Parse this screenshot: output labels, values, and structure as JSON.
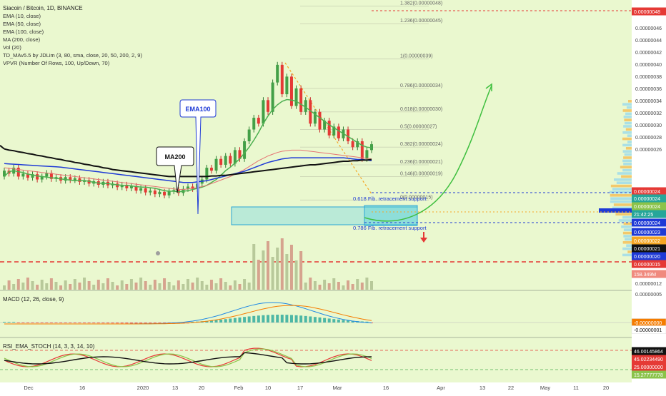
{
  "header": {
    "symbol": "Siacoin / Bitcoin, 1D, BINANCE",
    "indicators": [
      "EMA (10, close)",
      "EMA (50, close)",
      "EMA (100, close)",
      "MA (200, close)",
      "Vol (20)",
      "TD_MAv5.5 by JDLim (3, 80, sma, close, 20, 50, 200, 2, 9)",
      "VPVR (Number Of Rows, 100, Up/Down, 70)"
    ]
  },
  "annotations": {
    "ma200": "MA200",
    "ema100": "EMA100",
    "fib618_support": "0.618 Fib. retracement support",
    "fib786_support": "0.786 Fib. retracement support"
  },
  "fib_levels": [
    {
      "label": "1.382(0.00000048)",
      "price": 48
    },
    {
      "label": "1.236(0.00000045)",
      "price": 45
    },
    {
      "label": "1(0.00000039)",
      "price": 39
    },
    {
      "label": "0.786(0.00000034)",
      "price": 34
    },
    {
      "label": "0.618(0.00000030)",
      "price": 30
    },
    {
      "label": "0.5(0.00000027)",
      "price": 27
    },
    {
      "label": "0.382(0.00000024)",
      "price": 24
    },
    {
      "label": "0.236(0.00000021)",
      "price": 21
    },
    {
      "label": "0.146(0.00000019)",
      "price": 19
    },
    {
      "label": "0(0.00000015)",
      "price": 15
    }
  ],
  "price_axis": {
    "ticks": [
      "0.00000046",
      "0.00000044",
      "0.00000042",
      "0.00000040",
      "0.00000038",
      "0.00000036",
      "0.00000034",
      "0.00000032",
      "0.00000030",
      "0.00000028",
      "0.00000026",
      "0.00000012",
      "0.00000005"
    ],
    "tags": [
      {
        "text": "0.00000048",
        "color": "#e53935"
      },
      {
        "text": "0.00000024",
        "color": "#e53935"
      },
      {
        "text": "0.00000024",
        "color": "#26a69a"
      },
      {
        "text": "0.00000024",
        "color": "#8bc34a"
      },
      {
        "text": "21:42:25",
        "color": "#26a69a"
      },
      {
        "text": "0.00000024",
        "color": "#1e3ad6"
      },
      {
        "text": "0.00000023",
        "color": "#1e3ad6"
      },
      {
        "text": "0.00000022",
        "color": "#f5a623"
      },
      {
        "text": "0.00000021",
        "color": "#111111"
      },
      {
        "text": "0.00000020",
        "color": "#1e3ad6"
      },
      {
        "text": "0.00000015",
        "color": "#e53935"
      },
      {
        "text": "158.349M",
        "color": "#f08a7e"
      }
    ]
  },
  "macd": {
    "title": "MACD (12, 26, close, 9)",
    "tags": [
      {
        "text": "-0.00000000",
        "color": "#f57c00"
      },
      {
        "text": "-0.00000001",
        "color": "#ffffff"
      }
    ]
  },
  "rsi": {
    "title": "RSI_EMA_STOCH (14, 3, 3, 14, 10)",
    "tags": [
      {
        "text": "46.00145864",
        "color": "#111111"
      },
      {
        "text": "45.02234490",
        "color": "#e53935"
      },
      {
        "text": "25.00000000",
        "color": "#e53935"
      },
      {
        "text": "15.27777778",
        "color": "#8bc34a"
      }
    ]
  },
  "time_axis": {
    "labels": [
      "Dec",
      "16",
      "2020",
      "13",
      "20",
      "Feb",
      "10",
      "17",
      "Mar",
      "16",
      "Apr",
      "13",
      "22",
      "May",
      "11",
      "20"
    ]
  },
  "chart_data": {
    "type": "candlestick",
    "title": "Siacoin / Bitcoin, 1D, BINANCE",
    "y_unit": "1e-8 BTC (satoshi)",
    "ylim": [
      5,
      50
    ],
    "grid": false,
    "candles": [
      [
        19,
        20
      ],
      [
        20,
        19.5
      ],
      [
        19.5,
        20.5
      ],
      [
        20.5,
        19
      ],
      [
        19,
        19.5
      ],
      [
        19.5,
        18.8
      ],
      [
        18.8,
        19.4
      ],
      [
        19.4,
        18.5
      ],
      [
        18.5,
        19
      ],
      [
        19,
        19.6
      ],
      [
        19.6,
        18.6
      ],
      [
        18.6,
        18.9
      ],
      [
        18.9,
        18.3
      ],
      [
        18.3,
        18.9
      ],
      [
        18.9,
        18.4
      ],
      [
        18.4,
        18.7
      ],
      [
        18.7,
        18.1
      ],
      [
        18.1,
        18.4
      ],
      [
        18.4,
        17.8
      ],
      [
        17.8,
        18.2
      ],
      [
        18.2,
        17.6
      ],
      [
        17.6,
        18.1
      ],
      [
        18.1,
        17.5
      ],
      [
        17.5,
        17.8
      ],
      [
        17.8,
        17.2
      ],
      [
        17.2,
        17.6
      ],
      [
        17.6,
        17
      ],
      [
        17,
        17.4
      ],
      [
        17.4,
        16.6
      ],
      [
        16.6,
        17
      ],
      [
        17,
        16.3
      ],
      [
        16.3,
        16.6
      ],
      [
        16.6,
        16
      ],
      [
        16,
        16.4
      ],
      [
        16.4,
        15.8
      ],
      [
        15.8,
        16.5
      ],
      [
        16.5,
        16.7
      ],
      [
        16.7,
        16.2
      ],
      [
        16.2,
        16.9
      ],
      [
        16.9,
        17.3
      ],
      [
        17.3,
        16.9
      ],
      [
        16.9,
        17.8
      ],
      [
        17.8,
        18.5
      ],
      [
        18.5,
        20.5
      ],
      [
        20.5,
        20
      ],
      [
        20,
        22
      ],
      [
        22,
        21
      ],
      [
        21,
        22.5
      ],
      [
        22.5,
        21.2
      ],
      [
        21.2,
        23.5
      ],
      [
        23.5,
        22
      ],
      [
        22,
        25
      ],
      [
        25,
        27
      ],
      [
        27,
        29
      ],
      [
        29,
        28
      ],
      [
        28,
        32
      ],
      [
        32,
        30
      ],
      [
        30,
        35
      ],
      [
        35,
        38
      ],
      [
        38,
        33
      ],
      [
        33,
        36
      ],
      [
        36,
        31
      ],
      [
        31,
        34
      ],
      [
        34,
        30
      ],
      [
        30,
        32
      ],
      [
        32,
        28
      ],
      [
        28,
        30
      ],
      [
        30,
        27
      ],
      [
        27,
        28.5
      ],
      [
        28.5,
        26
      ],
      [
        26,
        27.5
      ],
      [
        27.5,
        25.5
      ],
      [
        25.5,
        27
      ],
      [
        27,
        25
      ],
      [
        25,
        24
      ],
      [
        24,
        25
      ],
      [
        25,
        22
      ],
      [
        22,
        23.5
      ],
      [
        23.5,
        24.5
      ]
    ],
    "series": [
      {
        "name": "EMA (10, close)",
        "values": [
          19,
          19.8,
          20,
          19.8,
          19.7,
          19.4,
          19.3,
          19.1,
          19,
          18.9,
          18.8,
          18.7,
          18.6,
          18.5,
          18.4,
          18.3,
          18.3,
          18.3,
          18.2,
          18,
          17.9,
          17.8,
          17.8,
          17.7,
          17.6,
          17.5,
          17.5,
          17.4,
          17.3,
          17.2,
          17.2,
          17.1,
          17.0,
          16.8,
          16.6,
          16.5,
          16.5,
          16.4,
          16.5,
          16.6,
          16.8,
          17,
          17.2,
          17.5,
          18,
          18.5,
          19.2,
          20,
          20.6,
          21.3,
          22,
          23,
          24,
          25.2,
          26.5,
          28,
          29.3,
          30.4,
          31.2,
          31.8,
          32.1,
          32,
          31.8,
          31.3,
          30.8,
          30.2,
          29.6,
          29,
          28.4,
          27.8,
          27.3,
          26.8,
          26.3,
          25.8,
          25.3,
          24.8,
          24.3,
          24,
          23.9
        ]
      },
      {
        "name": "EMA (50, close)",
        "values": [
          20.5,
          20.4,
          20.3,
          20.2,
          20.1,
          20,
          19.9,
          19.8,
          19.7,
          19.6,
          19.5,
          19.4,
          19.3,
          19.2,
          19.1,
          19,
          18.9,
          18.8,
          18.7,
          18.6,
          18.5,
          18.4,
          18.3,
          18.2,
          18.1,
          18,
          17.9,
          17.8,
          17.7,
          17.6,
          17.5,
          17.4,
          17.3,
          17.2,
          17.1,
          17,
          16.9,
          16.8,
          16.8,
          16.9,
          17,
          17.1,
          17.3,
          17.5,
          17.8,
          18.1,
          18.4,
          18.7,
          19,
          19.4,
          19.8,
          20.2,
          20.7,
          21.2,
          21.7,
          22.1,
          22.5,
          22.8,
          23.1,
          23.3,
          23.4,
          23.5,
          23.5,
          23.5,
          23.4,
          23.3,
          23.2,
          23.1,
          23,
          22.9,
          22.8,
          22.7,
          22.6,
          22.5,
          22.4,
          22.3,
          22.2,
          22.1,
          22
        ]
      },
      {
        "name": "EMA (100, close)",
        "values": [
          21.2,
          21.15,
          21.1,
          21.05,
          21,
          20.95,
          20.9,
          20.85,
          20.8,
          20.75,
          20.7,
          20.65,
          20.6,
          20.5,
          20.4,
          20.3,
          20.2,
          20.1,
          20,
          19.9,
          19.8,
          19.7,
          19.6,
          19.5,
          19.4,
          19.3,
          19.2,
          19.1,
          19,
          18.9,
          18.8,
          18.7,
          18.6,
          18.5,
          18.4,
          18.3,
          18.2,
          18.1,
          18,
          18,
          18,
          18.1,
          18.2,
          18.3,
          18.5,
          18.7,
          18.9,
          19.1,
          19.3,
          19.5,
          19.7,
          19.9,
          20.2,
          20.5,
          20.8,
          21.1,
          21.4,
          21.6,
          21.8,
          22,
          22.1,
          22.2,
          22.2,
          22.2,
          22.2,
          22.2,
          22.2,
          22.2,
          22.2,
          22.2,
          22.2,
          22.2,
          22.2,
          22.1,
          22,
          21.9,
          21.9,
          21.8,
          21.7
        ]
      },
      {
        "name": "MA (200, close)",
        "values": [
          23.7,
          23.5,
          23.4,
          23.2,
          23.1,
          22.9,
          22.8,
          22.6,
          22.5,
          22.3,
          22.2,
          22,
          21.9,
          21.7,
          21.6,
          21.4,
          21.3,
          21.1,
          21,
          20.8,
          20.7,
          20.5,
          20.4,
          20.2,
          20.1,
          20,
          19.9,
          19.8,
          19.7,
          19.6,
          19.5,
          19.4,
          19.3,
          19.2,
          19.1,
          19,
          19,
          19,
          19,
          19,
          19,
          19,
          19,
          19,
          19.1,
          19.1,
          19.2,
          19.2,
          19.3,
          19.4,
          19.5,
          19.6,
          19.7,
          19.8,
          19.9,
          20,
          20.1,
          20.2,
          20.3,
          20.4,
          20.5,
          20.6,
          20.7,
          20.8,
          20.9,
          21,
          21,
          21.1,
          21.2,
          21.3,
          21.4,
          21.5,
          21.6,
          21.6,
          21.7,
          21.7,
          21.8,
          21.8,
          21.9
        ]
      }
    ]
  }
}
